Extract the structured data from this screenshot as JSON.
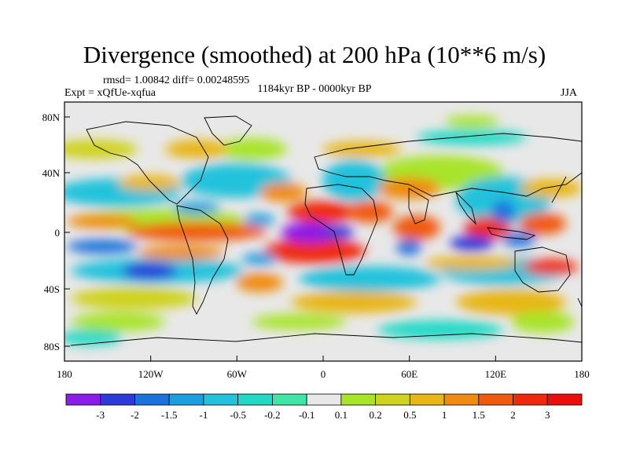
{
  "title": "Divergence (smoothed) at 200 hPa (10**6 m/s)",
  "stats": "rmsd= 1.00842 diff= 0.00248595",
  "experiment": "Expt = xQfUe-xqfua",
  "period": "1184kyr BP - 0000kyr BP",
  "season": "JJA",
  "lat_ticks": [
    "80N",
    "40N",
    "0",
    "40S",
    "80S"
  ],
  "lon_ticks": [
    "180",
    "120W",
    "60W",
    "0",
    "60E",
    "120E",
    "180"
  ],
  "legend": {
    "labels": [
      "-3",
      "-2",
      "-1.5",
      "-1",
      "-0.5",
      "-0.2",
      "-0.1",
      "0.1",
      "0.2",
      "0.5",
      "1",
      "1.5",
      "2",
      "3"
    ],
    "colors": [
      "#8a1ee8",
      "#2c3ad8",
      "#1a72dc",
      "#1c9fe0",
      "#22c2dc",
      "#22d9c6",
      "#3fe6a8",
      "#e8e8e8",
      "#a8e42a",
      "#cfd21e",
      "#e8b616",
      "#f08a10",
      "#f05a0c",
      "#ef2a0c",
      "#e8100c"
    ]
  }
}
